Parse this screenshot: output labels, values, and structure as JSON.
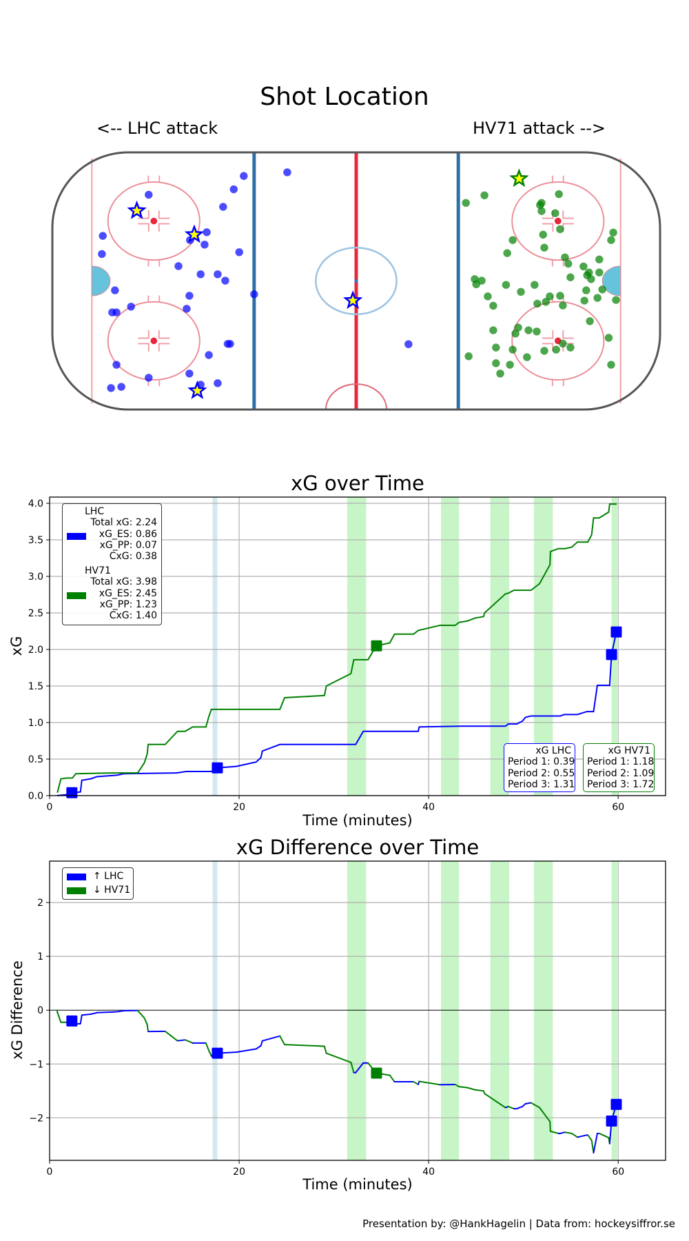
{
  "rink": {
    "title": "Shot Location",
    "left_label": "<-- LHC attack",
    "right_label": "HV71 attack -->",
    "colors": {
      "LHC": "#0000ff",
      "HV71": "#008000",
      "goal_fill": "#ffff00"
    },
    "shots": {
      "LHC": [
        [
          -68.3,
          28.5
        ],
        [
          -37.0,
          34.7
        ],
        [
          -40.3,
          30.3
        ],
        [
          -43.8,
          24.5
        ],
        [
          -49.2,
          16.1
        ],
        [
          -54.7,
          13.5
        ],
        [
          -49.9,
          12.0
        ],
        [
          -83.4,
          14.9
        ],
        [
          -83.7,
          8.9
        ],
        [
          -38.5,
          9.5
        ],
        [
          -58.5,
          4.9
        ],
        [
          -51.2,
          2.2
        ],
        [
          -45.6,
          2.2
        ],
        [
          -43.1,
          0.1
        ],
        [
          -33.6,
          -4.4
        ],
        [
          -79.4,
          -3.1
        ],
        [
          -54.9,
          -4.9
        ],
        [
          -74.1,
          -8.5
        ],
        [
          -55.8,
          -9.2
        ],
        [
          -80.3,
          -10.4
        ],
        [
          -78.9,
          -10.4
        ],
        [
          -42.3,
          -20.8
        ],
        [
          -41.5,
          -20.8
        ],
        [
          -48.5,
          -24.5
        ],
        [
          -78.9,
          -27.7
        ],
        [
          -54.9,
          -30.6
        ],
        [
          -68.3,
          -32.0
        ],
        [
          -80.7,
          -35.4
        ],
        [
          -77.3,
          -35.0
        ],
        [
          -51.2,
          -34.3
        ],
        [
          -45.6,
          -33.8
        ],
        [
          -22.7,
          35.9
        ],
        [
          17.2,
          -20.9
        ]
      ],
      "HV71": [
        [
          42.2,
          28.3
        ],
        [
          36.1,
          25.8
        ],
        [
          66.7,
          28.7
        ],
        [
          61.0,
          25.8
        ],
        [
          60.5,
          25.1
        ],
        [
          61.0,
          23.1
        ],
        [
          65.5,
          22.4
        ],
        [
          67.1,
          17.1
        ],
        [
          61.5,
          15.3
        ],
        [
          51.5,
          13.5
        ],
        [
          61.9,
          11.0
        ],
        [
          49.7,
          9.2
        ],
        [
          84.6,
          16.0
        ],
        [
          83.9,
          13.5
        ],
        [
          68.7,
          7.8
        ],
        [
          69.8,
          5.7
        ],
        [
          80.0,
          7.1
        ],
        [
          74.8,
          4.8
        ],
        [
          76.6,
          2.8
        ],
        [
          76.0,
          1.9
        ],
        [
          77.3,
          0.6
        ],
        [
          80.0,
          2.8
        ],
        [
          70.5,
          1.2
        ],
        [
          39.0,
          0.6
        ],
        [
          41.3,
          0.1
        ],
        [
          39.5,
          -1.1
        ],
        [
          49.3,
          -1.3
        ],
        [
          58.7,
          -1.3
        ],
        [
          54.2,
          -3.6
        ],
        [
          75.7,
          -3.1
        ],
        [
          81.0,
          -2.8
        ],
        [
          43.3,
          -5.1
        ],
        [
          63.7,
          -5.1
        ],
        [
          67.1,
          -4.9
        ],
        [
          62.4,
          -6.9
        ],
        [
          59.6,
          -7.5
        ],
        [
          68.0,
          -8.1
        ],
        [
          75.1,
          -6.5
        ],
        [
          79.4,
          -5.6
        ],
        [
          85.5,
          -6.3
        ],
        [
          45.1,
          -8.2
        ],
        [
          76.9,
          -13.3
        ],
        [
          45.1,
          -16.3
        ],
        [
          53.3,
          -15.4
        ],
        [
          52.4,
          -17.4
        ],
        [
          56.7,
          -16.3
        ],
        [
          59.4,
          -16.7
        ],
        [
          83.1,
          -18.8
        ],
        [
          68.0,
          -20.7
        ],
        [
          70.5,
          -22.0
        ],
        [
          65.8,
          -22.7
        ],
        [
          61.9,
          -23.1
        ],
        [
          51.5,
          -22.7
        ],
        [
          46.0,
          -22.0
        ],
        [
          37.0,
          -24.9
        ],
        [
          56.2,
          -25.2
        ],
        [
          46.0,
          -27.2
        ],
        [
          50.6,
          -27.7
        ],
        [
          83.9,
          -27.7
        ],
        [
          47.4,
          -30.6
        ]
      ]
    },
    "goals": {
      "LHC": [
        [
          -72.2,
          23.2
        ],
        [
          -53.3,
          15.3
        ],
        [
          -52.3,
          -36.3
        ],
        [
          -1.1,
          -6.5
        ]
      ],
      "HV71": [
        [
          53.6,
          33.8
        ]
      ]
    }
  },
  "chart_data": [
    {
      "type": "line",
      "title": "xG over Time",
      "xlabel": "Time (minutes)",
      "ylabel": "xG",
      "xlim": [
        0,
        65
      ],
      "ylim": [
        0,
        4.085
      ],
      "xticks": [
        0,
        20,
        40,
        60
      ],
      "xtick_labels": [
        "0",
        "20",
        "40",
        "60"
      ],
      "yticks": [
        0,
        0.5,
        1,
        1.5,
        2,
        2.5,
        3,
        3.5,
        4
      ],
      "ytick_labels": [
        "0.0",
        "0.5",
        "1.0",
        "1.5",
        "2.0",
        "2.5",
        "3.0",
        "3.5",
        "4.0"
      ],
      "grid": true,
      "series": [
        {
          "name": "LHC",
          "color": "#0000ff",
          "points": [
            [
              0.8,
              0
            ],
            [
              2.3,
              0.02
            ],
            [
              2.35,
              0.04
            ],
            [
              3.25,
              0.05
            ],
            [
              3.4,
              0.21
            ],
            [
              4.35,
              0.23
            ],
            [
              5.0,
              0.26
            ],
            [
              7.1,
              0.28
            ],
            [
              7.85,
              0.3
            ],
            [
              13.4,
              0.31
            ],
            [
              14.4,
              0.33
            ],
            [
              17.07,
              0.33
            ],
            [
              17.7,
              0.38
            ],
            [
              19.7,
              0.4
            ],
            [
              21.8,
              0.46
            ],
            [
              22.3,
              0.52
            ],
            [
              22.45,
              0.61
            ],
            [
              24.3,
              0.7
            ],
            [
              32.3,
              0.7
            ],
            [
              33.1,
              0.88
            ],
            [
              38.9,
              0.88
            ],
            [
              39.0,
              0.94
            ],
            [
              43.5,
              0.95
            ],
            [
              48.1,
              0.95
            ],
            [
              48.4,
              0.98
            ],
            [
              49.3,
              0.98
            ],
            [
              49.9,
              1.02
            ],
            [
              50.2,
              1.07
            ],
            [
              50.8,
              1.09
            ],
            [
              53.9,
              1.09
            ],
            [
              54.3,
              1.11
            ],
            [
              55.7,
              1.11
            ],
            [
              56.7,
              1.15
            ],
            [
              57.4,
              1.15
            ],
            [
              57.8,
              1.51
            ],
            [
              59.1,
              1.51
            ],
            [
              59.3,
              1.93
            ],
            [
              59.8,
              2.24
            ]
          ],
          "goals": [
            [
              2.35,
              0.04
            ],
            [
              17.7,
              0.38
            ],
            [
              59.3,
              1.93
            ],
            [
              59.8,
              2.24
            ]
          ]
        },
        {
          "name": "HV71",
          "color": "#008000",
          "points": [
            [
              0.82,
              0.04
            ],
            [
              1.19,
              0.23
            ],
            [
              1.8,
              0.24
            ],
            [
              2.4,
              0.24
            ],
            [
              2.76,
              0.3
            ],
            [
              6.64,
              0.31
            ],
            [
              9.3,
              0.31
            ],
            [
              10.0,
              0.45
            ],
            [
              10.3,
              0.57
            ],
            [
              10.4,
              0.7
            ],
            [
              12.2,
              0.7
            ],
            [
              12.7,
              0.77
            ],
            [
              13.5,
              0.88
            ],
            [
              14.3,
              0.88
            ],
            [
              15.1,
              0.94
            ],
            [
              16.5,
              0.94
            ],
            [
              16.8,
              1.08
            ],
            [
              17.07,
              1.18
            ],
            [
              24.3,
              1.18
            ],
            [
              24.8,
              1.34
            ],
            [
              29.0,
              1.37
            ],
            [
              29.2,
              1.5
            ],
            [
              31.8,
              1.67
            ],
            [
              32.1,
              1.86
            ],
            [
              33.6,
              1.86
            ],
            [
              34.2,
              1.99
            ],
            [
              34.5,
              2.05
            ],
            [
              35.9,
              2.09
            ],
            [
              36.4,
              2.21
            ],
            [
              38.4,
              2.21
            ],
            [
              38.9,
              2.26
            ],
            [
              41.2,
              2.33
            ],
            [
              42.8,
              2.33
            ],
            [
              43.2,
              2.37
            ],
            [
              44.1,
              2.39
            ],
            [
              44.9,
              2.43
            ],
            [
              45.8,
              2.45
            ],
            [
              45.9,
              2.5
            ],
            [
              48.1,
              2.76
            ],
            [
              48.4,
              2.77
            ],
            [
              49.0,
              2.81
            ],
            [
              50.8,
              2.81
            ],
            [
              51.7,
              2.9
            ],
            [
              52.8,
              3.16
            ],
            [
              52.85,
              3.34
            ],
            [
              53.7,
              3.38
            ],
            [
              54.4,
              3.38
            ],
            [
              55.1,
              3.4
            ],
            [
              55.7,
              3.47
            ],
            [
              56.8,
              3.47
            ],
            [
              57.2,
              3.57
            ],
            [
              57.4,
              3.8
            ],
            [
              58.0,
              3.8
            ],
            [
              59.0,
              3.88
            ],
            [
              59.1,
              3.99
            ],
            [
              59.85,
              3.99
            ]
          ],
          "goals": [
            [
              34.5,
              2.05
            ]
          ]
        }
      ],
      "powerplay_bands": {
        "HV71": [
          [
            31.4,
            33.4
          ],
          [
            41.3,
            43.2
          ],
          [
            46.5,
            48.5
          ],
          [
            51.1,
            53.1
          ],
          [
            59.3,
            59.9
          ]
        ],
        "LHC": [
          [
            17.2,
            17.7
          ]
        ]
      },
      "band_colors": {
        "HV71": "#c8f5c8",
        "LHC": "#d3e8ef"
      },
      "legend": {
        "placement": "upper-left",
        "LHC": [
          "LHC",
          "Total xG: 2.24",
          "xG_ES: 0.86",
          "xG_PP: 0.07",
          "CxG: 0.38"
        ],
        "HV71": [
          "HV71",
          "Total xG: 3.98",
          "xG_ES: 2.45",
          "xG_PP: 1.23",
          "CxG: 1.40"
        ]
      },
      "period_boxes": {
        "placement": "lower-right",
        "LHC": [
          "xG LHC",
          "Period 1: 0.39",
          "Period 2: 0.55",
          "Period 3: 1.31"
        ],
        "HV71": [
          "xG HV71",
          "Period 1: 1.18",
          "Period 2: 1.09",
          "Period 3: 1.72"
        ]
      }
    },
    {
      "type": "line",
      "title": "xG Difference over Time",
      "xlabel": "Time (minutes)",
      "ylabel": "xG Difference",
      "xlim": [
        0,
        65
      ],
      "ylim": [
        -2.79,
        2.77
      ],
      "xticks": [
        0,
        20,
        40,
        60
      ],
      "xtick_labels": [
        "0",
        "20",
        "40",
        "60"
      ],
      "yticks": [
        -2,
        -1,
        0,
        1,
        2
      ],
      "ytick_labels": [
        "−2",
        "−1",
        "0",
        "1",
        "2"
      ],
      "grid": true,
      "derived_from": "LHC minus HV71",
      "legend": {
        "placement": "upper-left",
        "items": [
          {
            "label": "↑ LHC",
            "color": "#0000ff"
          },
          {
            "label": "↓ HV71",
            "color": "#008000"
          }
        ]
      }
    }
  ],
  "footer": "Presentation by: @HankHagelin | Data from: hockeysiffror.se"
}
